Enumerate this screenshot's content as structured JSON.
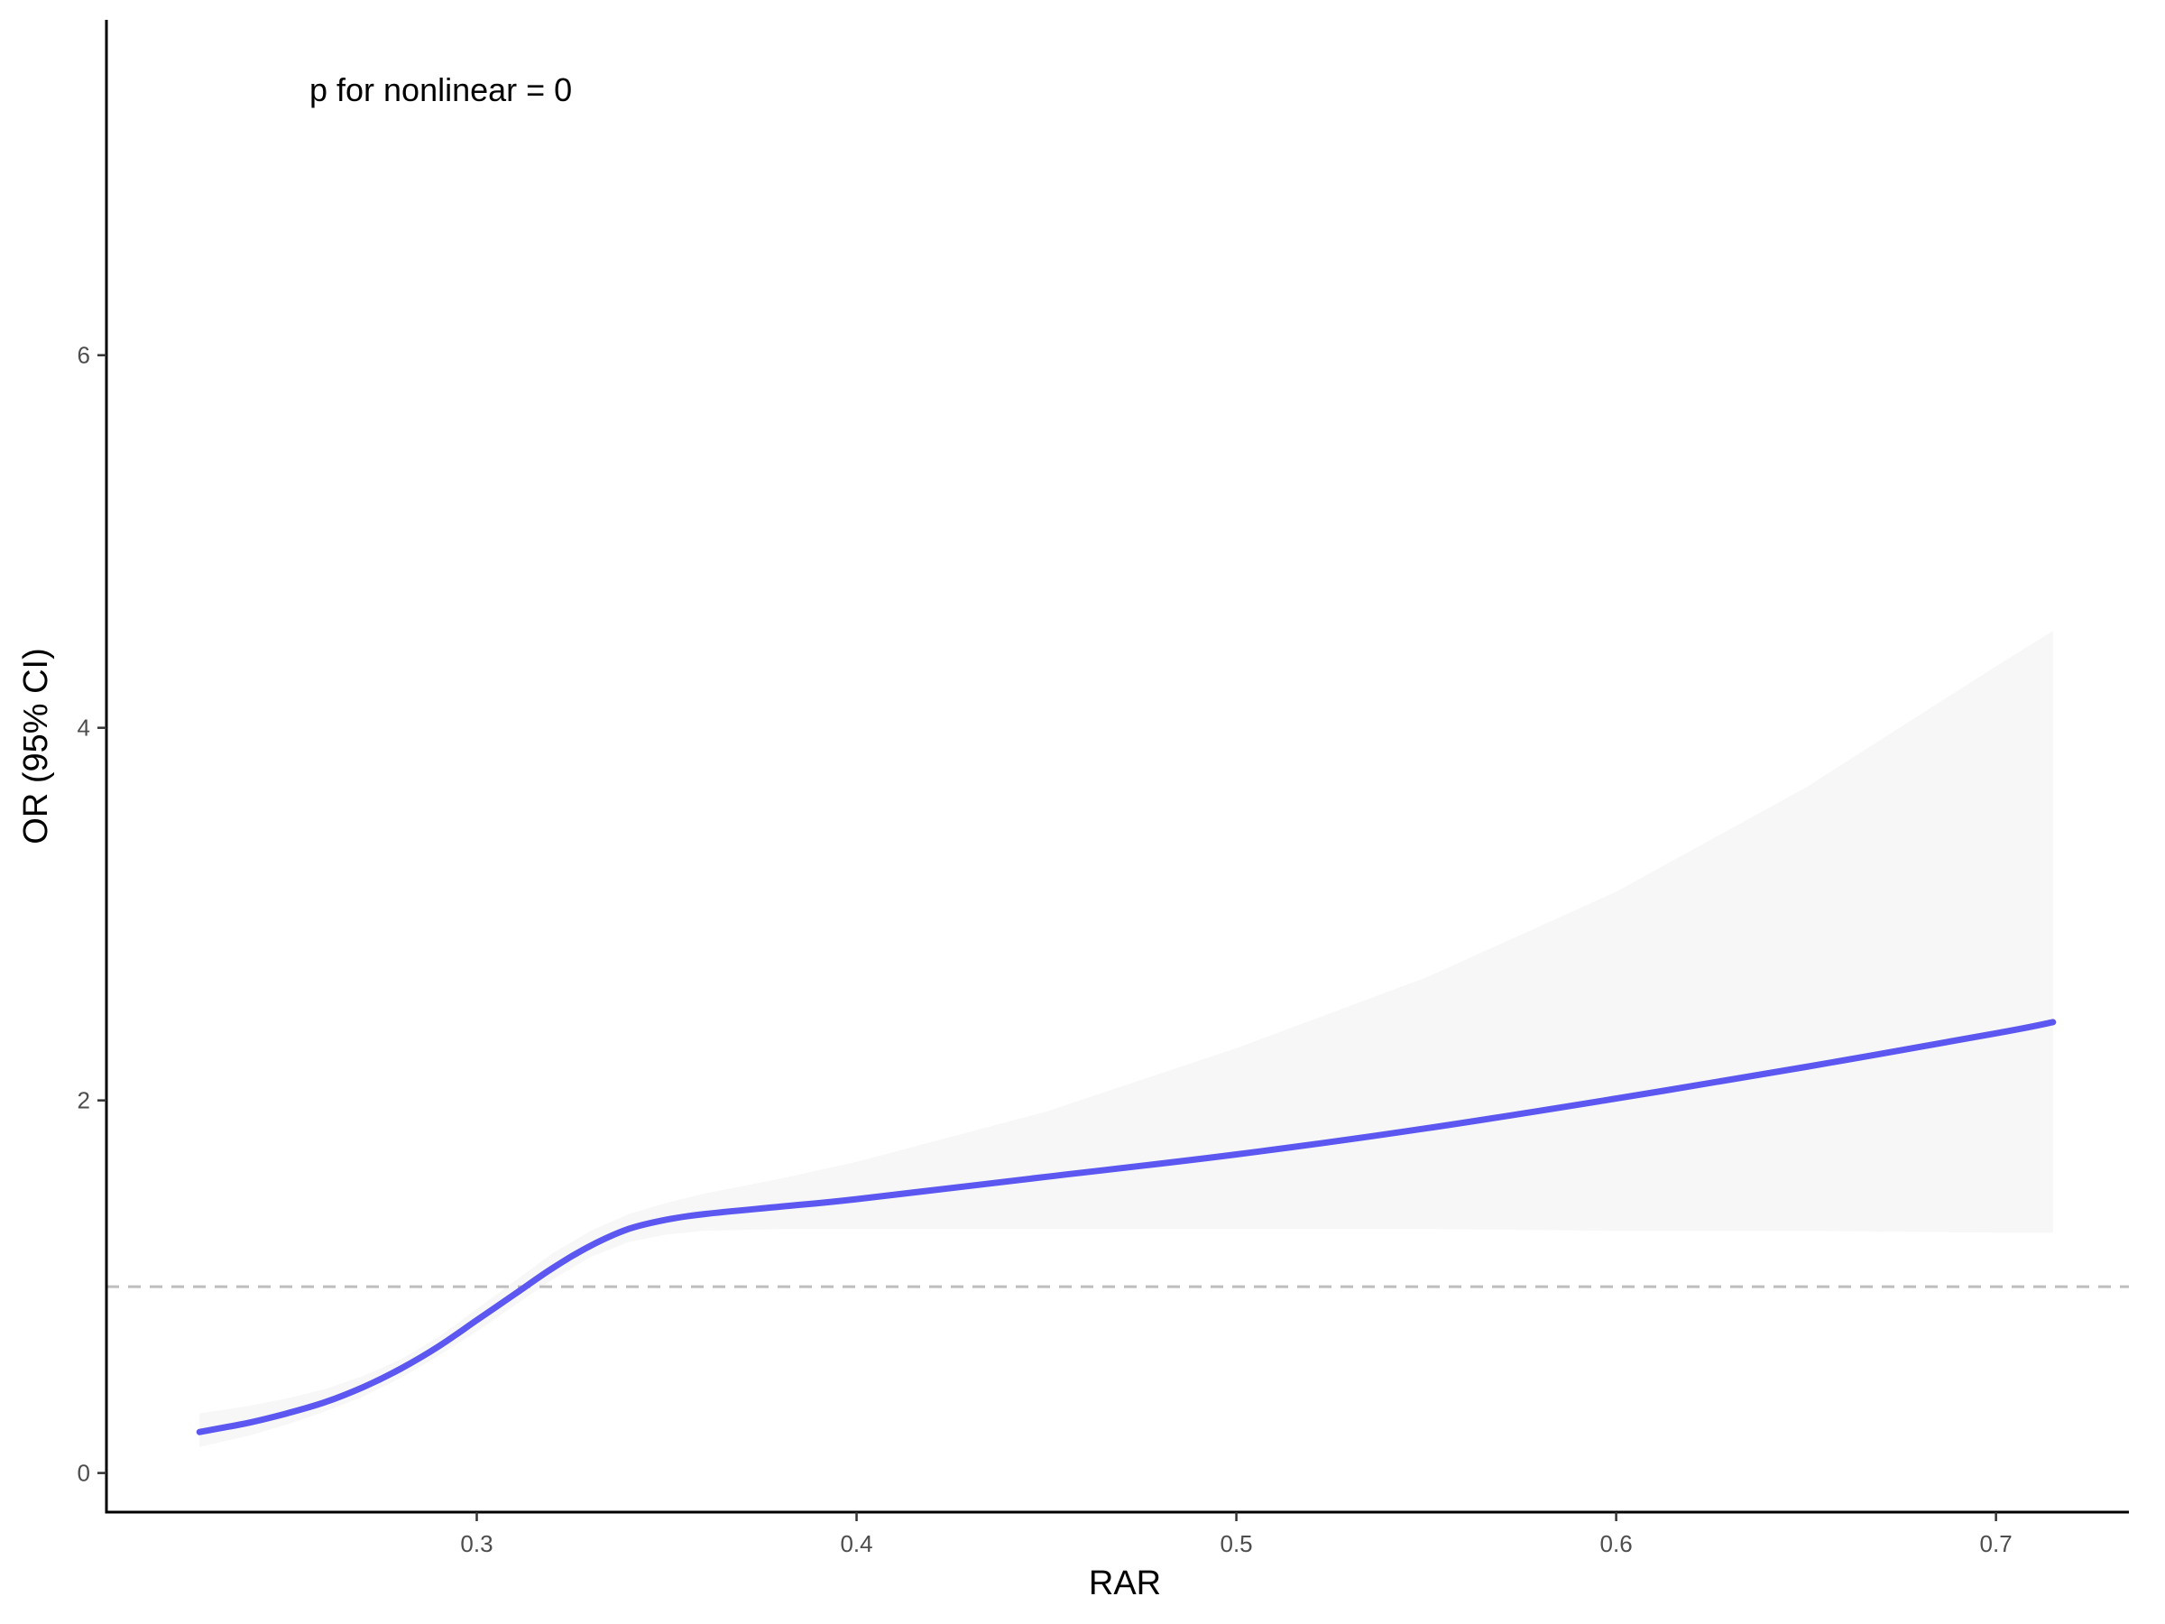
{
  "chart_data": {
    "type": "line",
    "annotation": "p for nonlinear = 0",
    "xlabel": "RAR",
    "ylabel": "OR (95% CI)",
    "xlim": [
      0.2025,
      0.735
    ],
    "ylim": [
      -0.21,
      7.8
    ],
    "x_ticks": [
      0.3,
      0.4,
      0.5,
      0.6,
      0.7
    ],
    "x_tick_labels": [
      "0.3",
      "0.4",
      "0.5",
      "0.6",
      "0.7"
    ],
    "y_ticks": [
      0,
      2,
      4,
      6
    ],
    "y_tick_labels": [
      "0",
      "2",
      "4",
      "6"
    ],
    "reference_line": 1,
    "grid": false,
    "colors": {
      "line": "#5B57F0",
      "ribbon": "#F7F7F7",
      "reference": "#BEBEBE",
      "axis": "#000000",
      "tick_label": "#4D4D4D"
    },
    "series": [
      {
        "x": [
          0.227,
          0.24,
          0.25,
          0.26,
          0.27,
          0.28,
          0.29,
          0.3,
          0.31,
          0.32,
          0.33,
          0.34,
          0.35,
          0.36,
          0.38,
          0.4,
          0.45,
          0.5,
          0.55,
          0.6,
          0.65,
          0.7,
          0.715
        ],
        "y": [
          0.22,
          0.27,
          0.32,
          0.38,
          0.46,
          0.56,
          0.68,
          0.82,
          0.96,
          1.1,
          1.22,
          1.31,
          1.36,
          1.39,
          1.43,
          1.47,
          1.59,
          1.71,
          1.85,
          2.01,
          2.18,
          2.36,
          2.42
        ],
        "lower": [
          0.14,
          0.2,
          0.26,
          0.33,
          0.41,
          0.51,
          0.63,
          0.76,
          0.9,
          1.04,
          1.16,
          1.24,
          1.28,
          1.3,
          1.31,
          1.31,
          1.31,
          1.31,
          1.31,
          1.3,
          1.3,
          1.29,
          1.29
        ],
        "upper": [
          0.32,
          0.36,
          0.4,
          0.45,
          0.52,
          0.61,
          0.73,
          0.88,
          1.03,
          1.18,
          1.3,
          1.39,
          1.45,
          1.5,
          1.58,
          1.67,
          1.94,
          2.28,
          2.66,
          3.12,
          3.68,
          4.33,
          4.52
        ]
      }
    ]
  }
}
